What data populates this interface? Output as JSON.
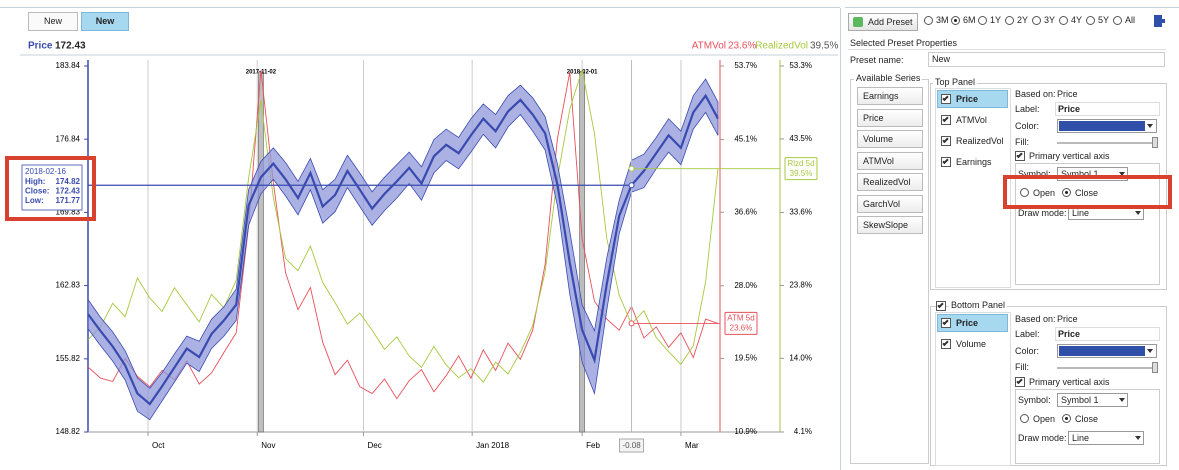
{
  "tabs": [
    "New",
    "New"
  ],
  "chart_data": {
    "type": "line",
    "xlim": [
      0,
      51
    ],
    "xticks": [
      {
        "value": 4.86,
        "label": "Oct"
      },
      {
        "value": 13.7,
        "label": "Nov"
      },
      {
        "value": 22.3,
        "label": "Dec"
      },
      {
        "value": 31.1,
        "label": "Jan 2018"
      },
      {
        "value": 40,
        "label": "Feb"
      },
      {
        "value": 48,
        "label": "Mar"
      }
    ],
    "ylim": [
      148.82,
      183.84
    ],
    "yticks": [
      148.82,
      155.82,
      162.83,
      169.83,
      176.84,
      183.84
    ],
    "y2lim": [
      10.9,
      53.7
    ],
    "y2ticks": [
      {
        "value": 10.9,
        "label": "10.9%"
      },
      {
        "value": 19.5,
        "label": "19.5%"
      },
      {
        "value": 28.0,
        "label": "28.0%"
      },
      {
        "value": 36.6,
        "label": "36.6%"
      },
      {
        "value": 45.1,
        "label": "45.1%"
      },
      {
        "value": 53.7,
        "label": "53.7%"
      }
    ],
    "y3lim": [
      4.1,
      53.3
    ],
    "y3ticks": [
      {
        "value": 4.1,
        "label": "4.1%"
      },
      {
        "value": 14.0,
        "label": "14.0%"
      },
      {
        "value": 23.8,
        "label": "23.8%"
      },
      {
        "value": 33.6,
        "label": "33.6%"
      },
      {
        "value": 43.5,
        "label": "43.5%"
      },
      {
        "value": 53.3,
        "label": "53.3%"
      }
    ],
    "series": [
      {
        "name": "Price",
        "color": "#3a4bb0",
        "value_label": "172.43",
        "values": [
          160.1,
          158.5,
          157,
          155.2,
          152.5,
          151.5,
          153.2,
          155,
          156.8,
          156,
          158.2,
          159.5,
          161,
          170.5,
          173.2,
          174.5,
          173,
          171.2,
          173.6,
          170.4,
          171.5,
          173.8,
          172,
          170.2,
          171.6,
          172.8,
          174.1,
          172.6,
          175.2,
          176.3,
          175.5,
          177.2,
          178.8,
          177.6,
          179.5,
          180.6,
          179.2,
          177.4,
          172.5,
          165,
          158.6,
          155.7,
          163,
          169.5,
          172.43,
          173.8,
          175.5,
          177.2,
          176,
          179.4,
          181,
          178.8
        ],
        "high": [
          161.5,
          159.8,
          158.4,
          156.6,
          154,
          153,
          154.5,
          156.3,
          158,
          157.5,
          159.6,
          160.8,
          162.5,
          172,
          174.7,
          176,
          174.6,
          172.8,
          175,
          172,
          173,
          175.3,
          173.6,
          171.8,
          173.2,
          174.4,
          175.6,
          174.2,
          176.8,
          177.8,
          177,
          178.8,
          180.2,
          179.2,
          181,
          182,
          180.8,
          179,
          174.5,
          168,
          161,
          158.5,
          165.5,
          171,
          174.82,
          175.4,
          177,
          178.8,
          177.6,
          181,
          182.6,
          180.4
        ],
        "low": [
          158.7,
          157.1,
          155.6,
          153.8,
          150.8,
          150,
          151.8,
          153.6,
          155.4,
          154.6,
          156.8,
          158,
          159.5,
          168.6,
          171.6,
          173,
          171.4,
          169.6,
          172,
          168.8,
          169.9,
          172.2,
          170.4,
          168.6,
          170,
          171.2,
          172.6,
          171,
          173.6,
          174.8,
          174,
          175.6,
          177.3,
          176,
          178,
          179.2,
          177.6,
          175.8,
          170.5,
          162,
          155.5,
          152.5,
          160.5,
          167.8,
          171.77,
          172.2,
          174,
          175.6,
          174.4,
          177.8,
          179.4,
          177.2
        ]
      },
      {
        "name": "ATMVol",
        "color": "#e8505b",
        "axis": "y2",
        "tag": "ATM 5d",
        "value_label": "23.6%",
        "values": [
          18.5,
          17.2,
          16.8,
          19.5,
          17.4,
          16.2,
          18.1,
          17,
          19.2,
          16.5,
          17.8,
          20.2,
          22.5,
          35,
          53.2,
          40.1,
          29.5,
          25.2,
          27.8,
          21.4,
          17.6,
          19.3,
          16.2,
          15.4,
          17.1,
          14.8,
          16.9,
          18.2,
          15.6,
          17.5,
          19.8,
          17.2,
          20.5,
          18.1,
          21.3,
          19.4,
          22.8,
          30.5,
          45.2,
          53,
          33.5,
          26.2,
          24.1,
          22.8,
          25.6,
          21.9,
          23.2,
          20.8,
          22.5,
          19.6,
          24.1,
          23.6
        ]
      },
      {
        "name": "RealizedVol",
        "color": "#a6c93f",
        "axis": "y3",
        "tag": "Rlzd 5d",
        "value_label": "39.5%",
        "values": [
          16.5,
          18.2,
          21.4,
          19.6,
          24.8,
          22.1,
          20.3,
          23.5,
          21.2,
          18.9,
          22.6,
          20.8,
          24.5,
          38.2,
          48.7,
          35.6,
          27.4,
          25.8,
          29.1,
          24.2,
          21.5,
          18.6,
          20.1,
          17.8,
          15.2,
          16.9,
          14.3,
          12.8,
          15.6,
          13.1,
          11.4,
          12.6,
          10.8,
          13.5,
          11.9,
          14.8,
          18.4,
          25.6,
          38.2,
          47.5,
          52.8,
          44.2,
          30.1,
          22.5,
          18.6,
          20.4,
          16.8,
          14.9,
          13.2,
          15.7,
          24.3,
          39.5
        ]
      }
    ],
    "markers": [
      {
        "x": 14,
        "label": "2017-11-02"
      },
      {
        "x": 40,
        "label": "2018-02-01"
      }
    ],
    "crosshair": {
      "x": 44,
      "y": 172.43,
      "label": "-0.08"
    },
    "tooltip": {
      "date": "2018-02-16",
      "rows": [
        [
          "High:",
          "174.82"
        ],
        [
          "Close:",
          "172.43"
        ],
        [
          "Low:",
          "171.77"
        ]
      ]
    }
  },
  "panel": {
    "add_preset": "Add Preset",
    "ranges": [
      "3M",
      "6M",
      "1Y",
      "2Y",
      "3Y",
      "4Y",
      "5Y",
      "All"
    ],
    "selected_range": 1,
    "properties_title": "Selected Preset Properties",
    "preset_name_label": "Preset name:",
    "preset_name": "New",
    "available_title": "Available Series",
    "available": [
      "Earnings",
      "Price",
      "Volume",
      "ATMVol",
      "RealizedVol",
      "GarchVol",
      "SkewSlope"
    ],
    "top": {
      "title": "Top Panel",
      "series": [
        {
          "label": "Price",
          "checked": true,
          "selected": true
        },
        {
          "label": "ATMVol",
          "checked": true,
          "selected": false
        },
        {
          "label": "RealizedVol",
          "checked": true,
          "selected": false
        },
        {
          "label": "Earnings",
          "checked": true,
          "selected": false
        }
      ],
      "based_on_label": "Based on:",
      "based_on": "Price",
      "label_label": "Label:",
      "label": "Price",
      "color_label": "Color:",
      "color": "#2f4fa8",
      "fill_label": "Fill:",
      "primary_axis": "Primary vertical axis",
      "primary_checked": true,
      "symbol_label": "Symbol:",
      "symbol": "Symbol 1",
      "open": "Open",
      "close": "Close",
      "close_selected": true,
      "draw_mode_label": "Draw mode:",
      "draw_mode": "Line"
    },
    "bottom": {
      "title": "Bottom Panel",
      "title_checked": true,
      "series": [
        {
          "label": "Price",
          "checked": true,
          "selected": true
        },
        {
          "label": "Volume",
          "checked": true,
          "selected": false
        }
      ],
      "based_on_label": "Based on:",
      "based_on": "Price",
      "label_label": "Label:",
      "label": "Price",
      "color_label": "Color:",
      "color": "#2f4fa8",
      "fill_label": "Fill:",
      "primary_axis": "Primary vertical axis",
      "primary_checked": true,
      "symbol_label": "Symbol:",
      "symbol": "Symbol 1",
      "open": "Open",
      "close": "Close",
      "close_selected": true,
      "draw_mode_label": "Draw mode:",
      "draw_mode": "Line"
    }
  }
}
